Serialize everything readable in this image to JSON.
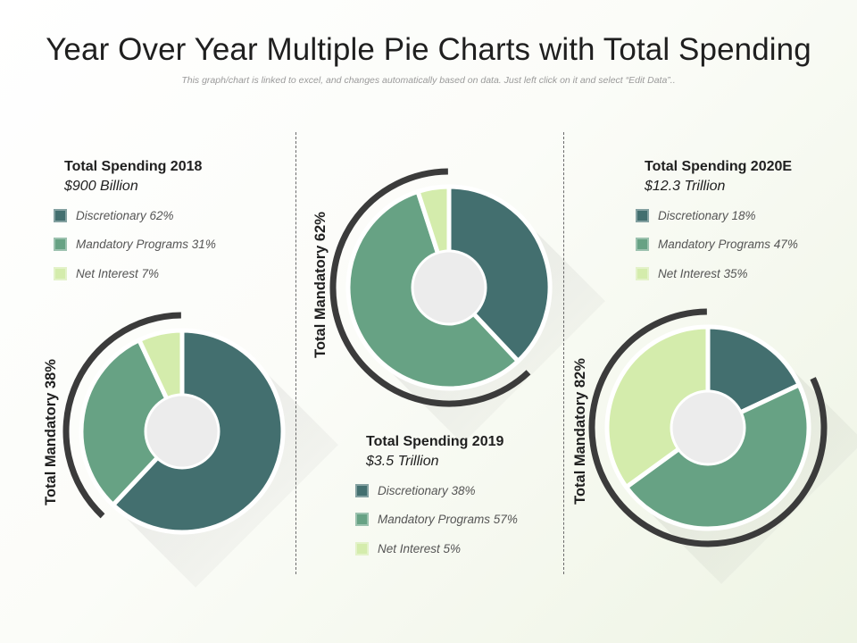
{
  "title": "Year Over Year Multiple Pie Charts with Total Spending",
  "subtitle": "This graph/chart is linked to excel, and changes automatically based on data. Just left click on it and select “Edit Data”..",
  "colors": {
    "discretionary": "#436f6f",
    "mandatory": "#67a284",
    "net_interest": "#d4ecac",
    "arc": "#3b3b3b",
    "hole": "#ececec"
  },
  "panels": [
    {
      "heading": "Total Spending 2018",
      "amount": "$900 Billion",
      "side_label": "Total Mandatory 38%"
    },
    {
      "heading": "Total Spending 2019",
      "amount": "$3.5 Trillion",
      "side_label": "Total Mandatory 62%"
    },
    {
      "heading": "Total Spending 2020E",
      "amount": "$12.3 Trillion",
      "side_label": "Total Mandatory 82%"
    }
  ],
  "chart_data": [
    {
      "type": "pie",
      "title": "Total Spending 2018",
      "categories": [
        "Discretionary",
        "Mandatory Programs",
        "Net Interest"
      ],
      "values": [
        62,
        31,
        7
      ],
      "legend": [
        "Discretionary 62%",
        "Mandatory Programs 31%",
        "Net Interest 7%"
      ]
    },
    {
      "type": "pie",
      "title": "Total Spending 2019",
      "categories": [
        "Discretionary",
        "Mandatory Programs",
        "Net Interest"
      ],
      "values": [
        38,
        57,
        5
      ],
      "legend": [
        "Discretionary 38%",
        "Mandatory Programs 57%",
        "Net Interest 5%"
      ]
    },
    {
      "type": "pie",
      "title": "Total Spending 2020E",
      "categories": [
        "Discretionary",
        "Mandatory Programs",
        "Net Interest"
      ],
      "values": [
        18,
        47,
        35
      ],
      "legend": [
        "Discretionary 18%",
        "Mandatory Programs 47%",
        "Net Interest 35%"
      ]
    }
  ]
}
